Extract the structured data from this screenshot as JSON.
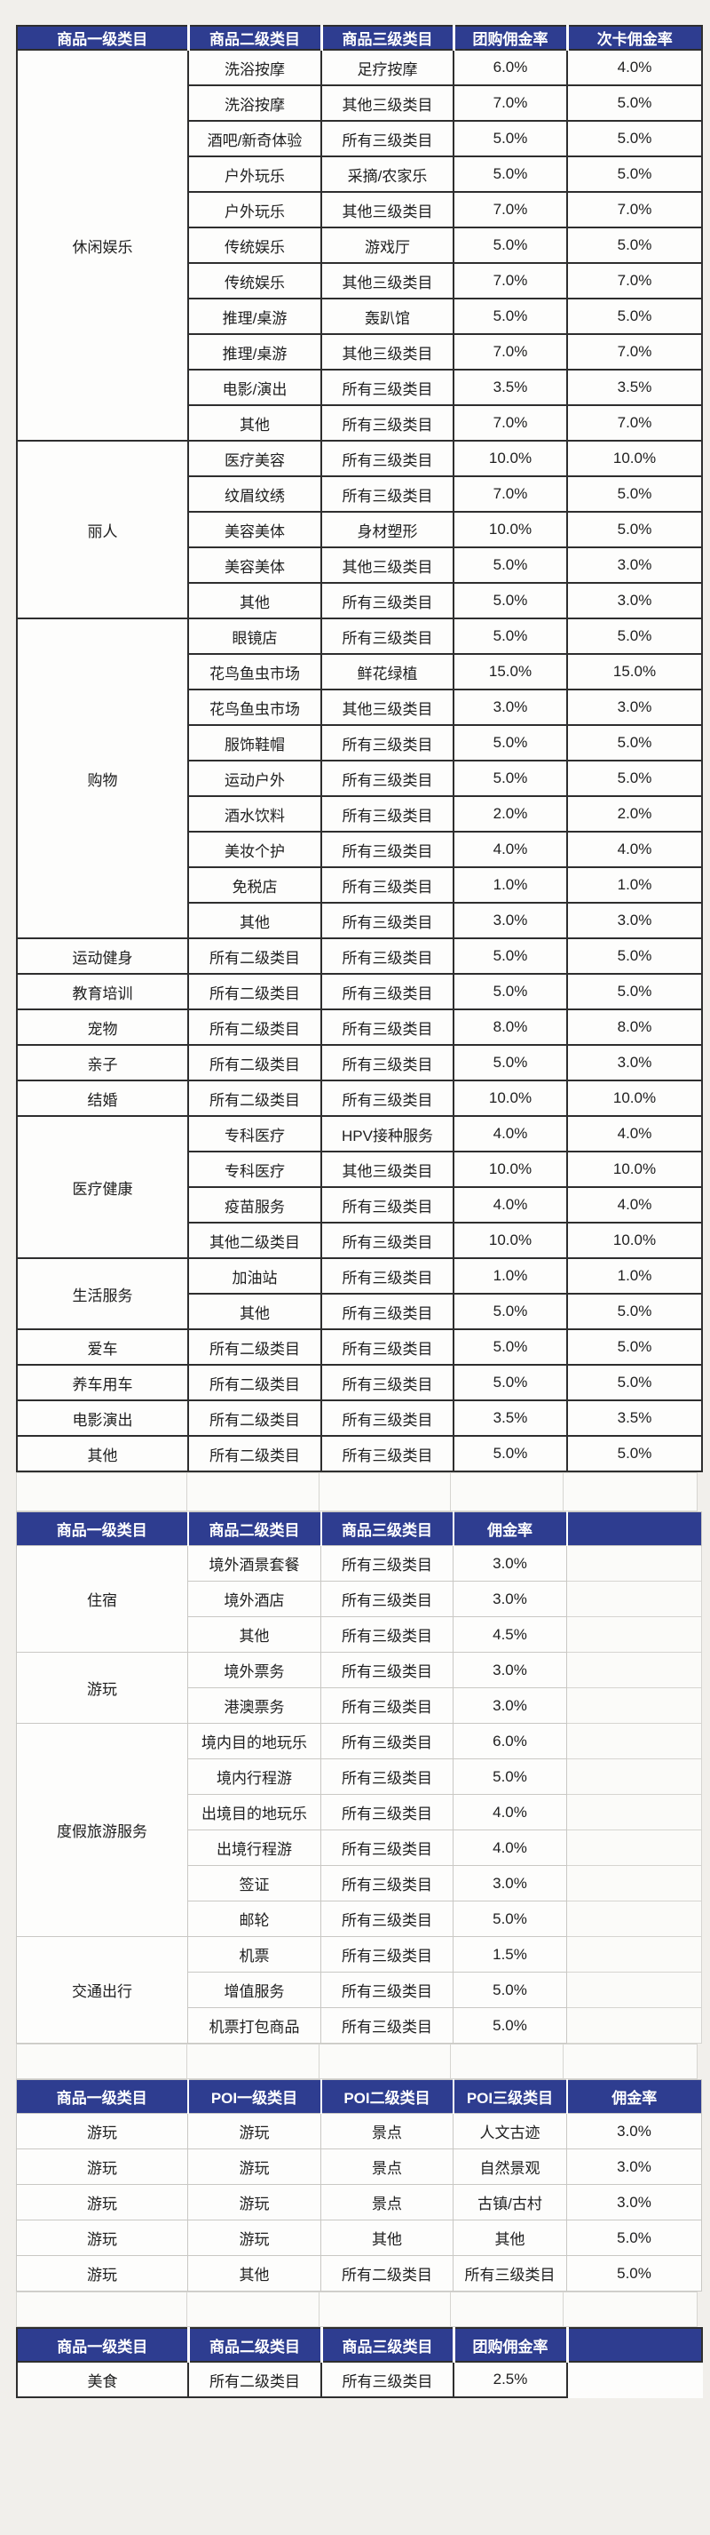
{
  "colors": {
    "header_bg": "#2e3d90",
    "header_text": "#ffffff",
    "body_text": "#202020",
    "pink_text": "#c9848b",
    "muted_pink_text": "#b39ba3",
    "dark_border": "#2e2e2e",
    "light_border": "#c9c8c4",
    "page_bg": "#f1efeb"
  },
  "tables": [
    {
      "name": "group-buy-card-commission-table",
      "headers": [
        "商品一级类目",
        "商品二级类目",
        "商品三级类目",
        "团购佣金率",
        "次卡佣金率"
      ],
      "groups": [
        {
          "name": "休闲娱乐",
          "rows": [
            {
              "c": [
                "洗浴按摩",
                "足疗按摩",
                "6.0%",
                "4.0%"
              ],
              "s": "p"
            },
            {
              "c": [
                "洗浴按摩",
                "其他三级类目",
                "7.0%",
                "5.0%"
              ],
              "s": "p"
            },
            {
              "c": [
                "酒吧/新奇体验",
                "所有三级类目",
                "5.0%",
                "5.0%"
              ],
              "s": "n"
            },
            {
              "c": [
                "户外玩乐",
                "采摘/农家乐",
                "5.0%",
                "5.0%"
              ],
              "s": "n"
            },
            {
              "c": [
                "户外玩乐",
                "其他三级类目",
                "7.0%",
                "7.0%"
              ],
              "s": "p"
            },
            {
              "c": [
                "传统娱乐",
                "游戏厅",
                "5.0%",
                "5.0%"
              ],
              "s": "n"
            },
            {
              "c": [
                "传统娱乐",
                "其他三级类目",
                "7.0%",
                "7.0%"
              ],
              "s": "p"
            },
            {
              "c": [
                "推理/桌游",
                "轰趴馆",
                "5.0%",
                "5.0%"
              ],
              "s": "p"
            },
            {
              "c": [
                "推理/桌游",
                "其他三级类目",
                "7.0%",
                "7.0%"
              ],
              "s": "p"
            },
            {
              "c": [
                "电影/演出",
                "所有三级类目",
                "3.5%",
                "3.5%"
              ],
              "s": "n"
            },
            {
              "c": [
                "其他",
                "所有三级类目",
                "7.0%",
                "7.0%"
              ],
              "s": "p"
            }
          ]
        },
        {
          "name": "丽人",
          "rows": [
            {
              "c": [
                "医疗美容",
                "所有三级类目",
                "10.0%",
                "10.0%"
              ],
              "s": "n"
            },
            {
              "c": [
                "纹眉纹绣",
                "所有三级类目",
                "7.0%",
                "5.0%"
              ],
              "s": "pa"
            },
            {
              "c": [
                "美容美体",
                "身材塑形",
                "10.0%",
                "5.0%"
              ],
              "s": "pa"
            },
            {
              "c": [
                "美容美体",
                "其他三级类目",
                "5.0%",
                "3.0%"
              ],
              "s": "n"
            },
            {
              "c": [
                "其他",
                "所有三级类目",
                "5.0%",
                "3.0%"
              ],
              "s": "n"
            }
          ]
        },
        {
          "name": "购物",
          "rows": [
            {
              "c": [
                "眼镜店",
                "所有三级类目",
                "5.0%",
                "5.0%"
              ],
              "s": "n"
            },
            {
              "c": [
                "花鸟鱼虫市场",
                "鲜花绿植",
                "15.0%",
                "15.0%"
              ],
              "s": "n"
            },
            {
              "c": [
                "花鸟鱼虫市场",
                "其他三级类目",
                "3.0%",
                "3.0%"
              ],
              "s": "n"
            },
            {
              "c": [
                "服饰鞋帽",
                "所有三级类目",
                "5.0%",
                "5.0%"
              ],
              "s": "n"
            },
            {
              "c": [
                "运动户外",
                "所有三级类目",
                "5.0%",
                "5.0%"
              ],
              "s": "n"
            },
            {
              "c": [
                "酒水饮料",
                "所有三级类目",
                "2.0%",
                "2.0%"
              ],
              "s": "n"
            },
            {
              "c": [
                "美妆个护",
                "所有三级类目",
                "4.0%",
                "4.0%"
              ],
              "s": "n"
            },
            {
              "c": [
                "免税店",
                "所有三级类目",
                "1.0%",
                "1.0%"
              ],
              "s": "n"
            },
            {
              "c": [
                "其他",
                "所有三级类目",
                "3.0%",
                "3.0%"
              ],
              "s": "n"
            }
          ]
        },
        {
          "name": "运动健身",
          "rows": [
            {
              "c": [
                "所有二级类目",
                "所有三级类目",
                "5.0%",
                "5.0%"
              ],
              "s": "n"
            }
          ]
        },
        {
          "name": "教育培训",
          "rows": [
            {
              "c": [
                "所有二级类目",
                "所有三级类目",
                "5.0%",
                "5.0%"
              ],
              "s": "n"
            }
          ]
        },
        {
          "name": "宠物",
          "rows": [
            {
              "c": [
                "所有二级类目",
                "所有三级类目",
                "8.0%",
                "8.0%"
              ],
              "s": "n"
            }
          ]
        },
        {
          "name": "亲子",
          "rows": [
            {
              "c": [
                "所有二级类目",
                "所有三级类目",
                "5.0%",
                "3.0%"
              ],
              "s": "n"
            }
          ]
        },
        {
          "name": "结婚",
          "rows": [
            {
              "c": [
                "所有二级类目",
                "所有三级类目",
                "10.0%",
                "10.0%"
              ],
              "s": "n"
            }
          ]
        },
        {
          "name": "医疗健康",
          "rows": [
            {
              "c": [
                "专科医疗",
                "HPV接种服务",
                "4.0%",
                "4.0%"
              ],
              "s": "n"
            },
            {
              "c": [
                "专科医疗",
                "其他三级类目",
                "10.0%",
                "10.0%"
              ],
              "s": "n"
            },
            {
              "c": [
                "疫苗服务",
                "所有三级类目",
                "4.0%",
                "4.0%"
              ],
              "s": "n"
            },
            {
              "c": [
                "其他二级类目",
                "所有三级类目",
                "10.0%",
                "10.0%"
              ],
              "s": "n"
            }
          ]
        },
        {
          "name": "生活服务",
          "rows": [
            {
              "c": [
                "加油站",
                "所有三级类目",
                "1.0%",
                "1.0%"
              ],
              "s": "n"
            },
            {
              "c": [
                "其他",
                "所有三级类目",
                "5.0%",
                "5.0%"
              ],
              "s": "n"
            }
          ]
        },
        {
          "name": "爱车",
          "rows": [
            {
              "c": [
                "所有二级类目",
                "所有三级类目",
                "5.0%",
                "5.0%"
              ],
              "s": "n"
            }
          ]
        },
        {
          "name": "养车用车",
          "rows": [
            {
              "c": [
                "所有二级类目",
                "所有三级类目",
                "5.0%",
                "5.0%"
              ],
              "s": "n"
            }
          ]
        },
        {
          "name": "电影演出",
          "rows": [
            {
              "c": [
                "所有二级类目",
                "所有三级类目",
                "3.5%",
                "3.5%"
              ],
              "s": "n"
            }
          ]
        },
        {
          "name": "其他",
          "rows": [
            {
              "c": [
                "所有二级类目",
                "所有三级类目",
                "5.0%",
                "5.0%"
              ],
              "s": "n"
            }
          ]
        }
      ]
    },
    {
      "name": "travel-commission-table",
      "headers": [
        "商品一级类目",
        "商品二级类目",
        "商品三级类目",
        "佣金率"
      ],
      "groups": [
        {
          "name": "住宿",
          "rows": [
            {
              "c": [
                "境外酒景套餐",
                "所有三级类目",
                "3.0%"
              ],
              "s": "n"
            },
            {
              "c": [
                "境外酒店",
                "所有三级类目",
                "3.0%"
              ],
              "s": "n"
            },
            {
              "c": [
                "其他",
                "所有三级类目",
                "4.5%"
              ],
              "s": "n"
            }
          ]
        },
        {
          "name": "游玩",
          "rows": [
            {
              "c": [
                "境外票务",
                "所有三级类目",
                "3.0%"
              ],
              "s": "n"
            },
            {
              "c": [
                "港澳票务",
                "所有三级类目",
                "3.0%"
              ],
              "s": "n"
            }
          ]
        },
        {
          "name": "度假旅游服务",
          "rows": [
            {
              "c": [
                "境内目的地玩乐",
                "所有三级类目",
                "6.0%"
              ],
              "s": "n"
            },
            {
              "c": [
                "境内行程游",
                "所有三级类目",
                "5.0%"
              ],
              "s": "n"
            },
            {
              "c": [
                "出境目的地玩乐",
                "所有三级类目",
                "4.0%"
              ],
              "s": "n"
            },
            {
              "c": [
                "出境行程游",
                "所有三级类目",
                "4.0%"
              ],
              "s": "n"
            },
            {
              "c": [
                "签证",
                "所有三级类目",
                "3.0%"
              ],
              "s": "n"
            },
            {
              "c": [
                "邮轮",
                "所有三级类目",
                "5.0%"
              ],
              "s": "n"
            }
          ]
        },
        {
          "name": "交通出行",
          "rows": [
            {
              "c": [
                "机票",
                "所有三级类目",
                "1.5%"
              ],
              "s": "n"
            },
            {
              "c": [
                "增值服务",
                "所有三级类目",
                "5.0%"
              ],
              "s": "n"
            },
            {
              "c": [
                "机票打包商品",
                "所有三级类目",
                "5.0%"
              ],
              "s": "n"
            }
          ]
        }
      ]
    },
    {
      "name": "poi-commission-table",
      "headers": [
        "商品一级类目",
        "POI一级类目",
        "POI二级类目",
        "POI三级类目",
        "佣金率"
      ],
      "groups": [
        {
          "name": "游玩",
          "rows": [
            {
              "c": [
                "游玩",
                "景点",
                "人文古迹",
                "3.0%"
              ],
              "s": "n"
            }
          ]
        },
        {
          "name": "游玩",
          "rows": [
            {
              "c": [
                "游玩",
                "景点",
                "自然景观",
                "3.0%"
              ],
              "s": "n"
            }
          ]
        },
        {
          "name": "游玩",
          "rows": [
            {
              "c": [
                "游玩",
                "景点",
                "古镇/古村",
                "3.0%"
              ],
              "s": "n"
            }
          ]
        },
        {
          "name": "游玩",
          "rows": [
            {
              "c": [
                "游玩",
                "其他",
                "其他",
                "5.0%"
              ],
              "s": "n"
            }
          ]
        },
        {
          "name": "游玩",
          "rows": [
            {
              "c": [
                "其他",
                "所有二级类目",
                "所有三级类目",
                "5.0%"
              ],
              "s": "n"
            }
          ]
        }
      ]
    },
    {
      "name": "food-commission-table",
      "headers": [
        "商品一级类目",
        "商品二级类目",
        "商品三级类目",
        "团购佣金率"
      ],
      "groups": [
        {
          "name": "美食",
          "rows": [
            {
              "c": [
                "所有二级类目",
                "所有三级类目",
                "2.5%"
              ],
              "s": "n"
            }
          ]
        }
      ]
    }
  ]
}
